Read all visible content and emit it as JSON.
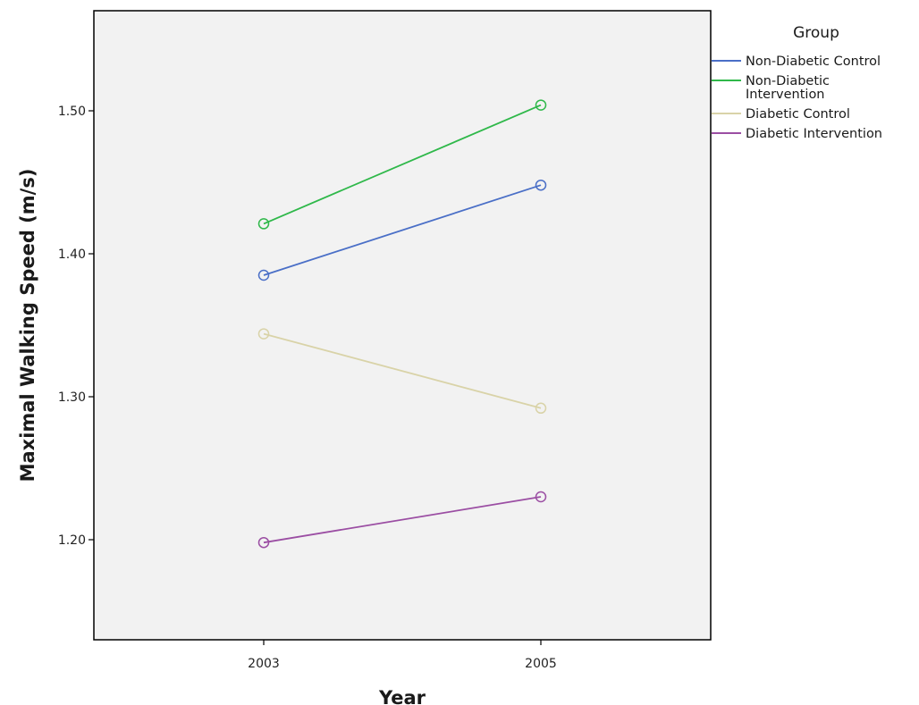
{
  "chart_data": {
    "type": "line",
    "title": "",
    "xlabel": "Year",
    "ylabel": "Maximal Walking Speed (m/s)",
    "categories": [
      "2003",
      "2005"
    ],
    "ylim": [
      1.13,
      1.57
    ],
    "yticks": [
      "1.20",
      "1.30",
      "1.40",
      "1.50"
    ],
    "grid": false,
    "legend_title": "Group",
    "legend_position": "right",
    "series": [
      {
        "name": "Non-Diabetic Control",
        "label_lines": [
          "Non-Diabetic Control"
        ],
        "color": "#4a6fc7",
        "values": [
          1.385,
          1.448
        ]
      },
      {
        "name": "Non-Diabetic Intervention",
        "label_lines": [
          "Non-Diabetic",
          "Intervention"
        ],
        "color": "#2fb84a",
        "values": [
          1.421,
          1.504
        ]
      },
      {
        "name": "Diabetic Control",
        "label_lines": [
          "Diabetic Control"
        ],
        "color": "#d9d3a8",
        "values": [
          1.344,
          1.292
        ]
      },
      {
        "name": "Diabetic Intervention",
        "label_lines": [
          "Diabetic Intervention"
        ],
        "color": "#9b4ea3",
        "values": [
          1.198,
          1.23
        ]
      }
    ]
  }
}
